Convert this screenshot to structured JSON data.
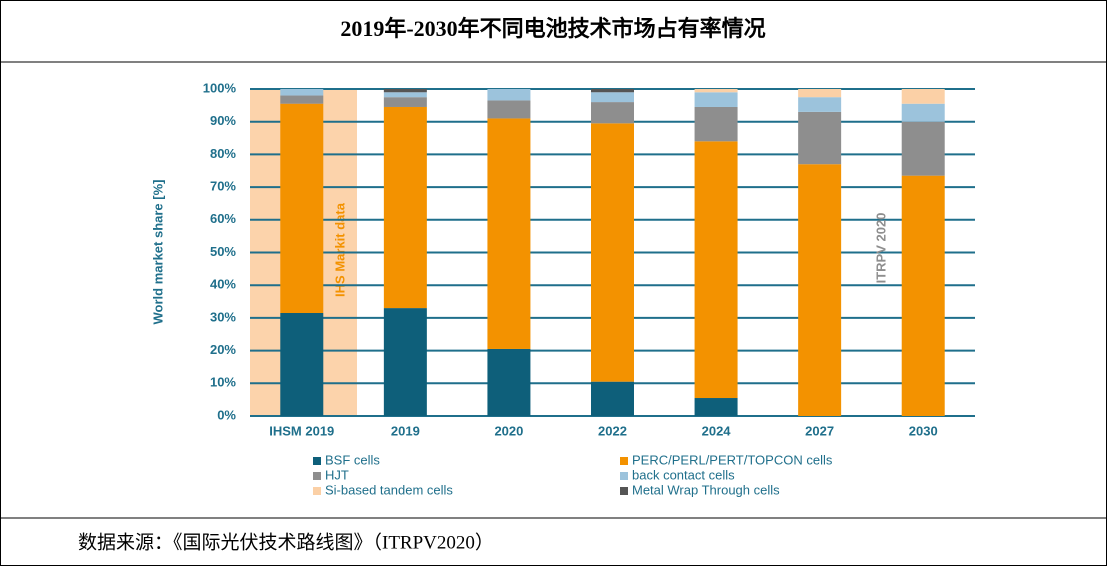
{
  "chart_data": {
    "type": "stacked-bar",
    "title": "2019年-2030年不同电池技术市场占有率情况",
    "source": "数据来源：《国际光伏技术路线图》（ITRPV2020）",
    "y_label": "World market share [%]",
    "annotations": [
      "IHS Markit data",
      "ITRPV 2020"
    ],
    "categories": [
      "IHSM 2019",
      "2019",
      "2020",
      "2022",
      "2024",
      "2027",
      "2030"
    ],
    "series": [
      {
        "name": "BSF cells",
        "color": "#0e5f7a",
        "values": [
          31.5,
          33,
          20.5,
          10.5,
          5.5,
          0,
          0
        ]
      },
      {
        "name": "PERC/PERL/PERT/TOPCON cells",
        "color": "#f39200",
        "values": [
          64,
          61.5,
          70.5,
          79,
          78.5,
          77,
          73.5
        ]
      },
      {
        "name": "HJT",
        "color": "#8e8e8e",
        "values": [
          2.5,
          3,
          5.5,
          6.5,
          10.5,
          16,
          16.5
        ]
      },
      {
        "name": "back contact cells",
        "color": "#9cc3dc",
        "values": [
          2,
          1.5,
          3.5,
          3,
          4.5,
          4.5,
          5.5
        ]
      },
      {
        "name": "Si-based tandem cells",
        "color": "#fbd0a6",
        "values": [
          0,
          0,
          0,
          0,
          1,
          2.5,
          4.5
        ]
      },
      {
        "name": "Metal Wrap Through cells",
        "color": "#555555",
        "values": [
          0,
          1,
          0,
          1,
          0,
          0,
          0
        ]
      }
    ],
    "ylim": [
      0,
      100
    ],
    "yticks": [
      {
        "value": 0,
        "label": "0%"
      },
      {
        "value": 10,
        "label": "10%"
      },
      {
        "value": 20,
        "label": "20%"
      },
      {
        "value": 30,
        "label": "30%"
      },
      {
        "value": 40,
        "label": "40%"
      },
      {
        "value": 50,
        "label": "50%"
      },
      {
        "value": 60,
        "label": "60%"
      },
      {
        "value": 70,
        "label": "70%"
      },
      {
        "value": 80,
        "label": "80%"
      },
      {
        "value": 90,
        "label": "90%"
      },
      {
        "value": 100,
        "label": "100%"
      }
    ],
    "grid": true
  }
}
